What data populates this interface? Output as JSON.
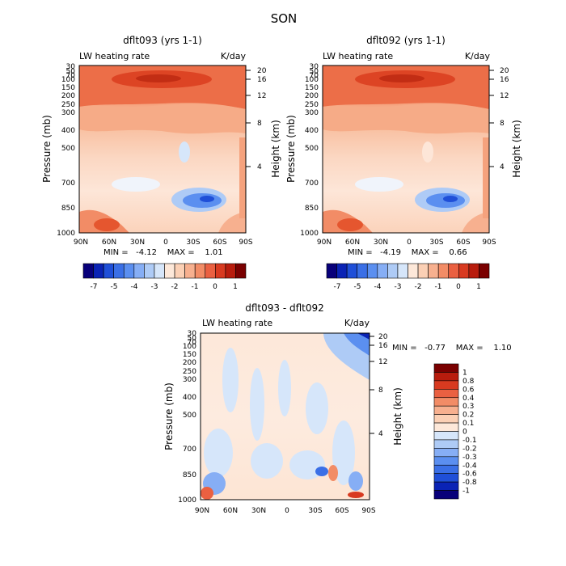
{
  "figure_title": "SON",
  "chart_data": [
    {
      "type": "heatmap",
      "title": "dflt093 (yrs 1-1)",
      "subtitle_left": "LW heating rate",
      "subtitle_right": "K/day",
      "ylabel": "Pressure (mb)",
      "ylabel_right": "Height (km)",
      "x_ticks": [
        "90N",
        "60N",
        "30N",
        "0",
        "30S",
        "60S",
        "90S"
      ],
      "y_ticks": [
        "30",
        "50",
        "70",
        "100",
        "150",
        "200",
        "250",
        "300",
        "400",
        "500",
        "700",
        "850",
        "1000"
      ],
      "y_ticks_right": [
        "20",
        "16",
        "12",
        "8",
        "4"
      ],
      "stats": "MIN =   -4.12    MAX =    1.01",
      "colorbar": {
        "orientation": "horizontal",
        "labels": [
          "-7",
          "-5",
          "-4",
          "-3",
          "-2",
          "-1",
          "0",
          "1"
        ],
        "colors": [
          "#08007a",
          "#0a23b5",
          "#1f4fd8",
          "#3a6fe6",
          "#5b8ff0",
          "#86aef5",
          "#aecbf6",
          "#d6e6fa",
          "#fde8d9",
          "#fbd0b5",
          "#f7b08f",
          "#f28c66",
          "#ea6041",
          "#d83a20",
          "#b81c0d",
          "#7a0000"
        ]
      }
    },
    {
      "type": "heatmap",
      "title": "dflt092 (yrs 1-1)",
      "subtitle_left": "LW heating rate",
      "subtitle_right": "K/day",
      "ylabel": "Pressure (mb)",
      "ylabel_right": "Height (km)",
      "x_ticks": [
        "90N",
        "60N",
        "30N",
        "0",
        "30S",
        "60S",
        "90S"
      ],
      "y_ticks": [
        "30",
        "50",
        "70",
        "100",
        "150",
        "200",
        "250",
        "300",
        "400",
        "500",
        "700",
        "850",
        "1000"
      ],
      "y_ticks_right": [
        "20",
        "16",
        "12",
        "8",
        "4"
      ],
      "stats": "MIN =   -4.19    MAX =    0.66",
      "colorbar": {
        "orientation": "horizontal",
        "labels": [
          "-7",
          "-5",
          "-4",
          "-3",
          "-2",
          "-1",
          "0",
          "1"
        ],
        "colors": [
          "#08007a",
          "#0a23b5",
          "#1f4fd8",
          "#3a6fe6",
          "#5b8ff0",
          "#86aef5",
          "#aecbf6",
          "#d6e6fa",
          "#fde8d9",
          "#fbd0b5",
          "#f7b08f",
          "#f28c66",
          "#ea6041",
          "#d83a20",
          "#b81c0d",
          "#7a0000"
        ]
      }
    },
    {
      "type": "heatmap",
      "title": "dflt093 - dflt092",
      "subtitle_left": "LW heating rate",
      "subtitle_right": "K/day",
      "ylabel": "Pressure (mb)",
      "ylabel_right": "Height (km)",
      "x_ticks": [
        "90N",
        "60N",
        "30N",
        "0",
        "30S",
        "60S",
        "90S"
      ],
      "y_ticks": [
        "30",
        "50",
        "70",
        "100",
        "150",
        "200",
        "250",
        "300",
        "400",
        "500",
        "700",
        "850",
        "1000"
      ],
      "y_ticks_right": [
        "20",
        "16",
        "12",
        "8",
        "4"
      ],
      "stats": "MIN =   -0.77    MAX =    1.10",
      "colorbar": {
        "orientation": "vertical",
        "labels": [
          "1",
          "0.8",
          "0.6",
          "0.4",
          "0.3",
          "0.2",
          "0.1",
          "0",
          "-0.1",
          "-0.2",
          "-0.3",
          "-0.4",
          "-0.6",
          "-0.8",
          "-1"
        ],
        "colors": [
          "#7a0000",
          "#b81c0d",
          "#d83a20",
          "#ea6041",
          "#f28c66",
          "#f7b08f",
          "#fbd0b5",
          "#fde8d9",
          "#d6e6fa",
          "#aecbf6",
          "#86aef5",
          "#5b8ff0",
          "#3a6fe6",
          "#1f4fd8",
          "#0a23b5",
          "#08007a"
        ]
      }
    }
  ]
}
